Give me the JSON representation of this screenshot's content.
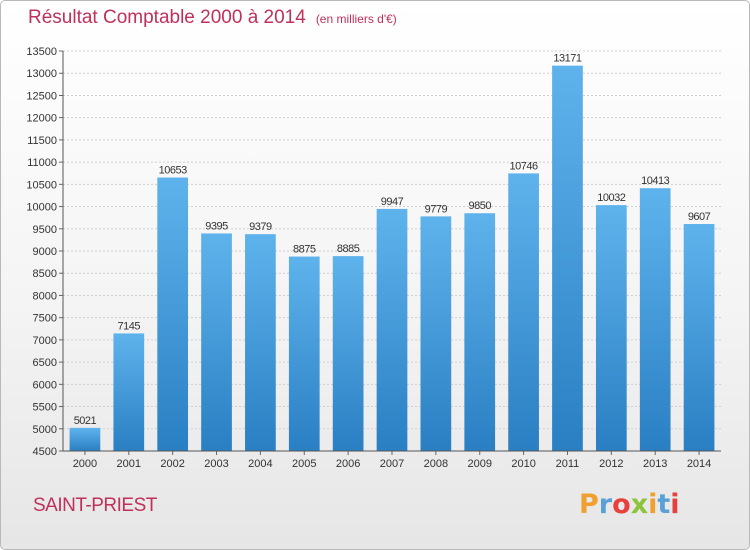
{
  "header": {
    "title": "Résultat Comptable 2000 à 2014",
    "subtitle": "(en milliers d'€)"
  },
  "footer": {
    "commune": "SAINT-PRIEST",
    "brand": "Proxiti"
  },
  "colors": {
    "accent": "#c0305a",
    "bar_top": "#5fb3ec",
    "bar_bottom": "#2a7fc3",
    "brand_letters": [
      "#f0a030",
      "#5aa0d8",
      "#e8403c",
      "#8cc43c",
      "#f0a030",
      "#5aa0d8",
      "#e8403c"
    ]
  },
  "chart_data": {
    "type": "bar",
    "title": "Résultat Comptable 2000 à 2014",
    "xlabel": "",
    "ylabel": "",
    "categories": [
      "2000",
      "2001",
      "2002",
      "2003",
      "2004",
      "2005",
      "2006",
      "2007",
      "2008",
      "2009",
      "2010",
      "2011",
      "2012",
      "2013",
      "2014"
    ],
    "values": [
      5021,
      7145,
      10653,
      9395,
      9379,
      8875,
      8885,
      9947,
      9779,
      9850,
      10746,
      13171,
      10032,
      10413,
      9607
    ],
    "ylim": [
      4500,
      13500
    ],
    "yticks": [
      4500,
      5000,
      5500,
      6000,
      6500,
      7000,
      7500,
      8000,
      8500,
      9000,
      9500,
      10000,
      10500,
      11000,
      11500,
      12000,
      12500,
      13000,
      13500
    ],
    "grid": true,
    "data_labels": true
  }
}
